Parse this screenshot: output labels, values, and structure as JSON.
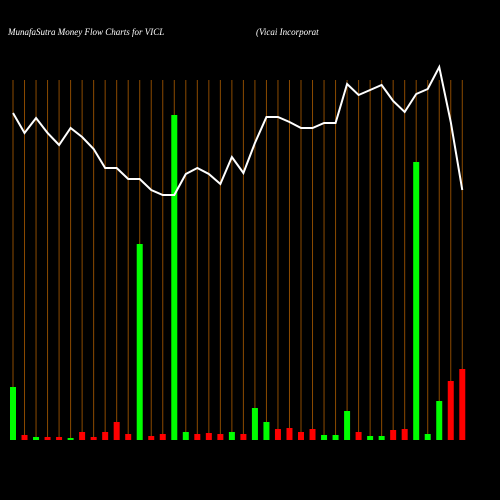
{
  "chart_data": {
    "type": "bar-line",
    "title": "MunafaSutra  Money Flow  Charts for VICL",
    "subtitle": "(Vicai Incorporat",
    "categories": [
      null,
      null,
      null,
      null,
      null,
      null,
      null,
      null,
      null,
      null,
      null,
      null,
      null,
      null,
      null,
      null,
      null,
      null,
      null,
      null,
      null,
      null,
      null,
      null,
      null,
      null,
      null,
      null,
      null,
      null,
      null,
      null,
      null,
      null,
      null,
      null,
      null,
      null,
      null,
      null
    ],
    "ylim": [
      0,
      380
    ],
    "bars": {
      "values": [
        53,
        5,
        3,
        3,
        3,
        2,
        8,
        3,
        8,
        18,
        6,
        196,
        4,
        6,
        325,
        8,
        6,
        7,
        6,
        8,
        6,
        32,
        18,
        11,
        12,
        8,
        11,
        5,
        5,
        29,
        8,
        4,
        4,
        10,
        11,
        278,
        6,
        39,
        59,
        71
      ],
      "colors": [
        "#00ff00",
        "#ff0000",
        "#00ff00",
        "#ff0000",
        "#ff0000",
        "#00ff00",
        "#ff0000",
        "#ff0000",
        "#ff0000",
        "#ff0000",
        "#ff0000",
        "#00ff00",
        "#ff0000",
        "#ff0000",
        "#00ff00",
        "#00ff00",
        "#ff0000",
        "#ff0000",
        "#ff0000",
        "#00ff00",
        "#ff0000",
        "#00ff00",
        "#00ff00",
        "#ff0000",
        "#ff0000",
        "#ff0000",
        "#ff0000",
        "#00ff00",
        "#00ff00",
        "#00ff00",
        "#ff0000",
        "#00ff00",
        "#00ff00",
        "#ff0000",
        "#ff0000",
        "#00ff00",
        "#00ff00",
        "#00ff00",
        "#ff0000",
        "#ff0000"
      ]
    },
    "line": {
      "color": "#ffffff",
      "values": [
        327,
        307,
        322,
        307,
        295,
        312,
        303,
        291,
        272,
        272,
        261,
        261,
        250,
        245,
        245,
        266,
        272,
        266,
        256,
        283,
        267,
        297,
        323,
        323,
        318,
        312,
        312,
        317,
        317,
        356,
        345,
        350,
        355,
        339,
        328,
        346,
        351,
        373,
        318,
        250
      ]
    },
    "grid_color": "#8b4a00"
  }
}
